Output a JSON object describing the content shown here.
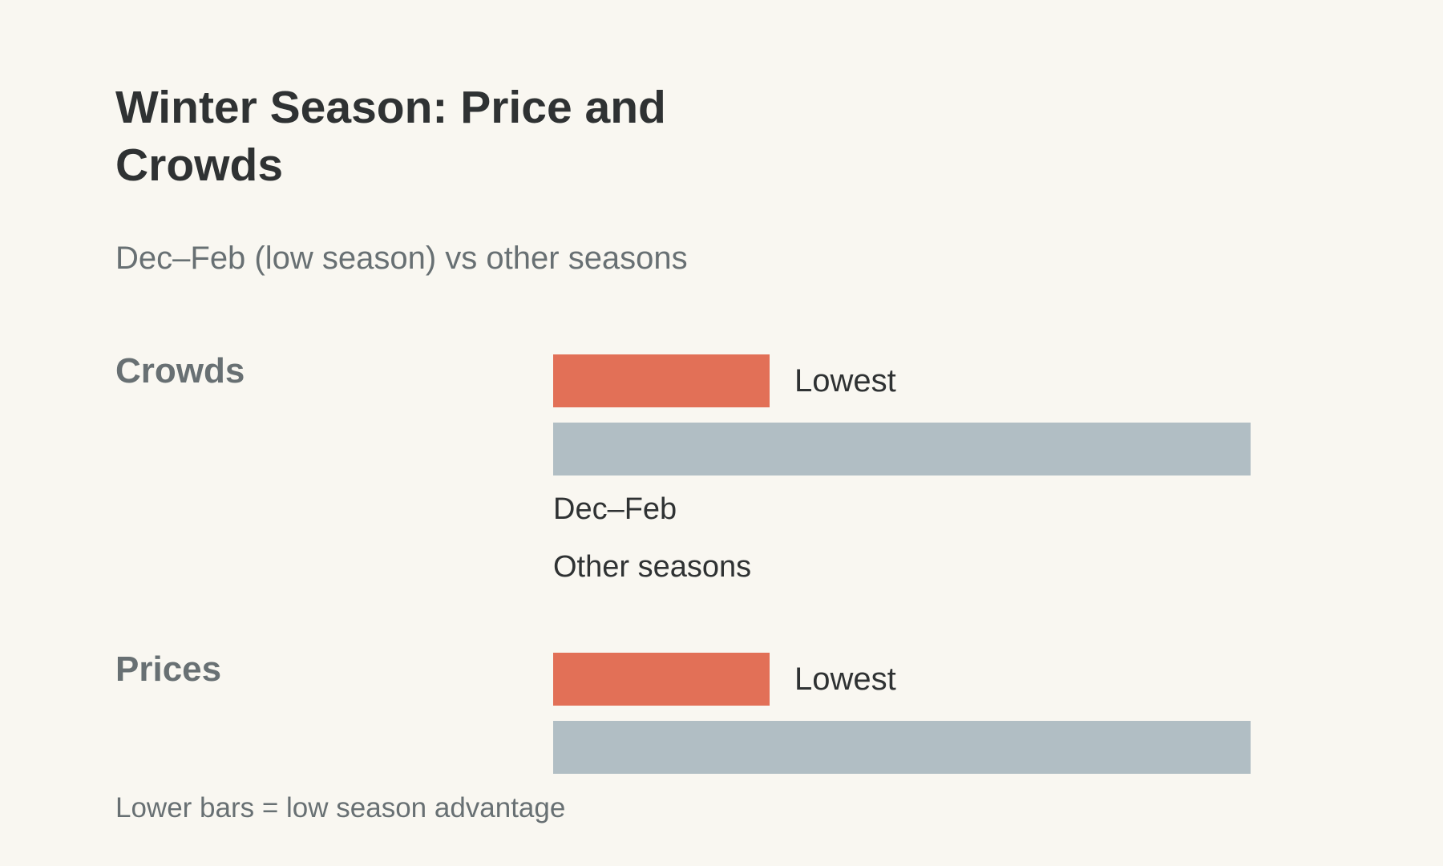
{
  "chart_data": {
    "type": "bar",
    "title": "Winter Season: Price and Crowds",
    "subtitle": "Dec–Feb (low season) vs other seasons",
    "series": [
      {
        "name": "Dec–Feb",
        "color": "#e27057"
      },
      {
        "name": "Other seasons",
        "color": "#b1bec4"
      }
    ],
    "groups": [
      {
        "name": "Crowds",
        "bars": [
          {
            "series": "Dec–Feb",
            "value": 0.31,
            "label": "Lowest"
          },
          {
            "series": "Other seasons",
            "value": 1.0,
            "label": ""
          }
        ]
      },
      {
        "name": "Prices",
        "bars": [
          {
            "series": "Dec–Feb",
            "value": 0.31,
            "label": "Lowest"
          },
          {
            "series": "Other seasons",
            "value": 1.0,
            "label": ""
          }
        ]
      }
    ],
    "legend": [
      "Dec–Feb",
      "Other seasons"
    ],
    "legend_placement": "below first group",
    "footnote": "Lower bars = low season advantage"
  }
}
